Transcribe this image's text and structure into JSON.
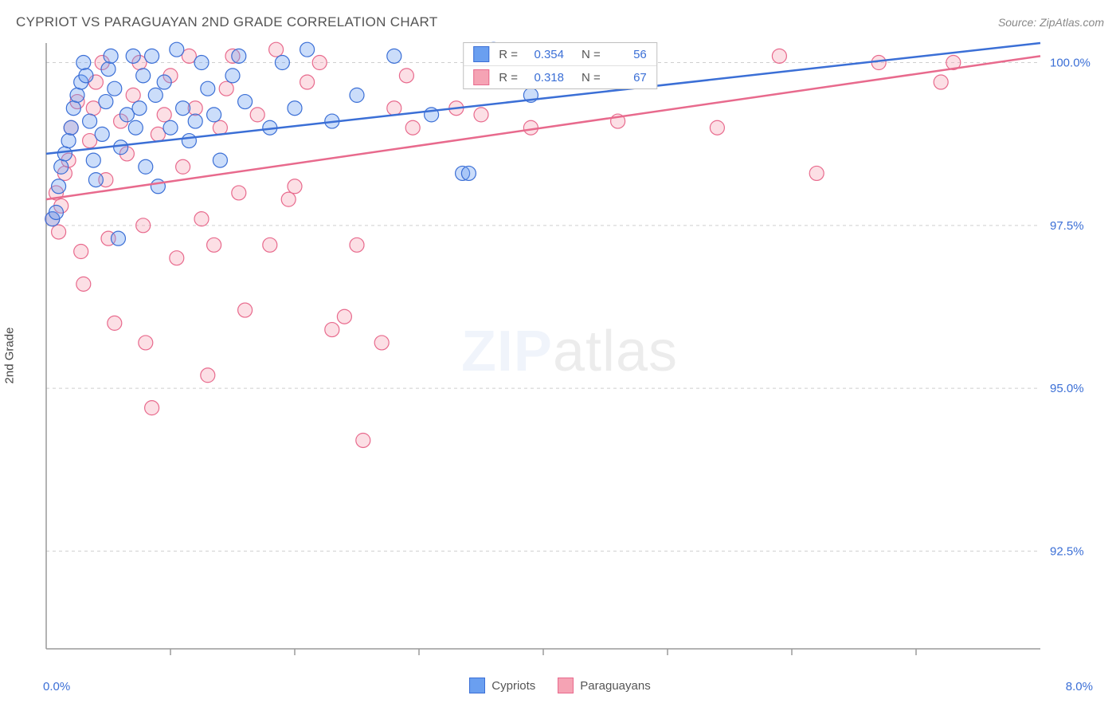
{
  "header": {
    "title": "CYPRIOT VS PARAGUAYAN 2ND GRADE CORRELATION CHART",
    "source": "Source: ZipAtlas.com"
  },
  "y_axis_label": "2nd Grade",
  "watermark": {
    "zip": "ZIP",
    "atlas": "atlas"
  },
  "chart": {
    "type": "scatter",
    "xlim": [
      0.0,
      8.0
    ],
    "ylim": [
      91.0,
      100.3
    ],
    "y_ticks": [
      {
        "v": 100.0,
        "label": "100.0%"
      },
      {
        "v": 97.5,
        "label": "97.5%"
      },
      {
        "v": 95.0,
        "label": "95.0%"
      },
      {
        "v": 92.5,
        "label": "92.5%"
      }
    ],
    "x_tick_positions": [
      1.0,
      2.0,
      3.0,
      4.0,
      5.0,
      6.0,
      7.0
    ],
    "x_bounds": {
      "min_label": "0.0%",
      "max_label": "8.0%"
    },
    "background_color": "#ffffff",
    "grid_color": "#cfcfcf",
    "axis_color": "#9a9a9a",
    "marker_radius": 9,
    "series": {
      "cypriots": {
        "label": "Cypriots",
        "color_fill": "#6a9ff0",
        "color_stroke": "#3b6fd6",
        "r_value": "0.354",
        "n_value": "56",
        "trend": {
          "x1": 0.0,
          "y1": 98.6,
          "x2": 8.0,
          "y2": 100.3
        },
        "points": [
          [
            0.05,
            97.6
          ],
          [
            0.08,
            97.7
          ],
          [
            0.1,
            98.1
          ],
          [
            0.12,
            98.4
          ],
          [
            0.15,
            98.6
          ],
          [
            0.18,
            98.8
          ],
          [
            0.2,
            99.0
          ],
          [
            0.22,
            99.3
          ],
          [
            0.25,
            99.5
          ],
          [
            0.28,
            99.7
          ],
          [
            0.3,
            100.0
          ],
          [
            0.32,
            99.8
          ],
          [
            0.35,
            99.1
          ],
          [
            0.38,
            98.5
          ],
          [
            0.4,
            98.2
          ],
          [
            0.45,
            98.9
          ],
          [
            0.48,
            99.4
          ],
          [
            0.5,
            99.9
          ],
          [
            0.52,
            100.1
          ],
          [
            0.55,
            99.6
          ],
          [
            0.58,
            97.3
          ],
          [
            0.6,
            98.7
          ],
          [
            0.65,
            99.2
          ],
          [
            0.7,
            100.1
          ],
          [
            0.72,
            99.0
          ],
          [
            0.75,
            99.3
          ],
          [
            0.78,
            99.8
          ],
          [
            0.8,
            98.4
          ],
          [
            0.85,
            100.1
          ],
          [
            0.88,
            99.5
          ],
          [
            0.9,
            98.1
          ],
          [
            0.95,
            99.7
          ],
          [
            1.0,
            99.0
          ],
          [
            1.05,
            100.2
          ],
          [
            1.1,
            99.3
          ],
          [
            1.15,
            98.8
          ],
          [
            1.2,
            99.1
          ],
          [
            1.25,
            100.0
          ],
          [
            1.3,
            99.6
          ],
          [
            1.35,
            99.2
          ],
          [
            1.4,
            98.5
          ],
          [
            1.5,
            99.8
          ],
          [
            1.55,
            100.1
          ],
          [
            1.6,
            99.4
          ],
          [
            1.8,
            99.0
          ],
          [
            1.9,
            100.0
          ],
          [
            2.0,
            99.3
          ],
          [
            2.1,
            100.2
          ],
          [
            2.3,
            99.1
          ],
          [
            2.5,
            99.5
          ],
          [
            2.8,
            100.1
          ],
          [
            3.1,
            99.2
          ],
          [
            3.35,
            98.3
          ],
          [
            3.4,
            98.3
          ],
          [
            3.6,
            100.2
          ],
          [
            3.9,
            99.5
          ]
        ]
      },
      "paraguayans": {
        "label": "Paraguayans",
        "color_fill": "#f5a3b4",
        "color_stroke": "#e86a8d",
        "r_value": "0.318",
        "n_value": "67",
        "trend": {
          "x1": 0.0,
          "y1": 97.9,
          "x2": 8.0,
          "y2": 100.1
        },
        "points": [
          [
            0.05,
            97.6
          ],
          [
            0.08,
            98.0
          ],
          [
            0.1,
            97.4
          ],
          [
            0.12,
            97.8
          ],
          [
            0.15,
            98.3
          ],
          [
            0.18,
            98.5
          ],
          [
            0.2,
            99.0
          ],
          [
            0.25,
            99.4
          ],
          [
            0.28,
            97.1
          ],
          [
            0.3,
            96.6
          ],
          [
            0.35,
            98.8
          ],
          [
            0.38,
            99.3
          ],
          [
            0.4,
            99.7
          ],
          [
            0.45,
            100.0
          ],
          [
            0.48,
            98.2
          ],
          [
            0.5,
            97.3
          ],
          [
            0.55,
            96.0
          ],
          [
            0.6,
            99.1
          ],
          [
            0.65,
            98.6
          ],
          [
            0.7,
            99.5
          ],
          [
            0.75,
            100.0
          ],
          [
            0.78,
            97.5
          ],
          [
            0.8,
            95.7
          ],
          [
            0.85,
            94.7
          ],
          [
            0.9,
            98.9
          ],
          [
            0.95,
            99.2
          ],
          [
            1.0,
            99.8
          ],
          [
            1.05,
            97.0
          ],
          [
            1.1,
            98.4
          ],
          [
            1.15,
            100.1
          ],
          [
            1.2,
            99.3
          ],
          [
            1.25,
            97.6
          ],
          [
            1.3,
            95.2
          ],
          [
            1.35,
            97.2
          ],
          [
            1.4,
            99.0
          ],
          [
            1.45,
            99.6
          ],
          [
            1.5,
            100.1
          ],
          [
            1.55,
            98.0
          ],
          [
            1.6,
            96.2
          ],
          [
            1.7,
            99.2
          ],
          [
            1.8,
            97.2
          ],
          [
            1.85,
            100.2
          ],
          [
            1.95,
            97.9
          ],
          [
            2.0,
            98.1
          ],
          [
            2.1,
            99.7
          ],
          [
            2.2,
            100.0
          ],
          [
            2.3,
            95.9
          ],
          [
            2.4,
            96.1
          ],
          [
            2.5,
            97.2
          ],
          [
            2.55,
            94.2
          ],
          [
            2.7,
            95.7
          ],
          [
            2.8,
            99.3
          ],
          [
            2.9,
            99.8
          ],
          [
            2.95,
            99.0
          ],
          [
            3.3,
            99.3
          ],
          [
            3.5,
            99.2
          ],
          [
            3.6,
            99.8
          ],
          [
            3.9,
            99.0
          ],
          [
            4.0,
            100.0
          ],
          [
            4.6,
            99.1
          ],
          [
            4.8,
            100.0
          ],
          [
            5.4,
            99.0
          ],
          [
            5.9,
            100.1
          ],
          [
            6.2,
            98.3
          ],
          [
            6.7,
            100.0
          ],
          [
            7.2,
            99.7
          ],
          [
            7.3,
            100.0
          ]
        ]
      }
    }
  },
  "stats_box": {
    "rows": [
      {
        "series": "cypriots",
        "r_label": "R =",
        "n_label": "N ="
      },
      {
        "series": "paraguayans",
        "r_label": "R =",
        "n_label": "N ="
      }
    ]
  },
  "legend": [
    {
      "series": "cypriots"
    },
    {
      "series": "paraguayans"
    }
  ]
}
